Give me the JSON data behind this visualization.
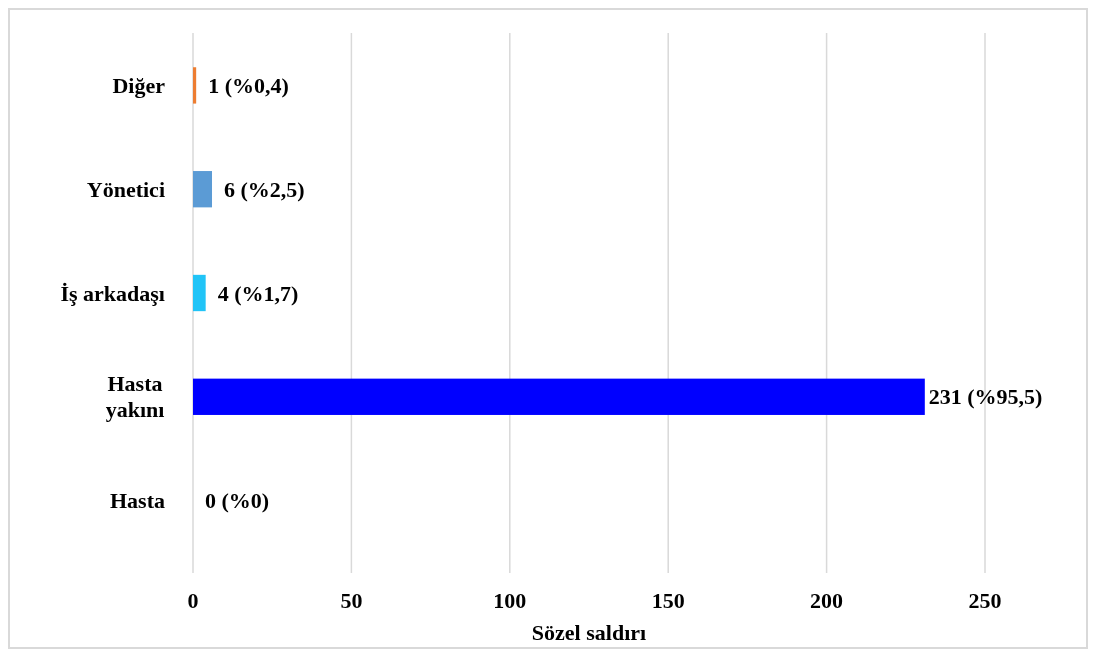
{
  "chart_data": {
    "type": "bar",
    "orientation": "horizontal",
    "xlabel": "Sözel saldırı",
    "categories": [
      "Diğer",
      "Yönetici",
      "İş arkadaşı",
      "Hasta\nyakını",
      "Hasta"
    ],
    "values": [
      1,
      6,
      4,
      231,
      0
    ],
    "colors": [
      "#ed7d31",
      "#5b9bd5",
      "#21c4f7",
      "#0000ff",
      "#0000ff"
    ],
    "value_labels": [
      "1 (%0,4)",
      "6 (%2,5)",
      "4 (%1,7)",
      "231 (%95,5)",
      "0 (%0)"
    ],
    "xlim": [
      0,
      250
    ],
    "xticks": [
      0,
      50,
      100,
      150,
      200,
      250
    ],
    "grid": "x"
  }
}
